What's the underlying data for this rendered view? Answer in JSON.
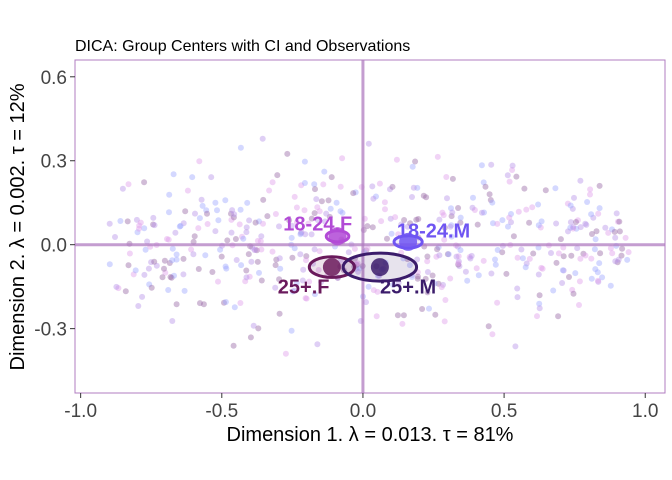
{
  "chart_data": {
    "type": "scatter",
    "title": "DICA: Group Centers with CI and Observations",
    "xlabel": "Dimension 1.   λ = 0.013.  τ = 81%",
    "ylabel": "Dimension 2.   λ = 0.002.  τ = 12%",
    "xlim": [
      -1.02,
      1.07
    ],
    "ylim": [
      -0.53,
      0.66
    ],
    "x_ticks": [
      -1.0,
      -0.5,
      0.0,
      0.5,
      1.0
    ],
    "x_tick_labels": [
      "-1.0",
      "-0.5",
      "0.0",
      "0.5",
      "1.0"
    ],
    "y_ticks": [
      -0.3,
      0.0,
      0.3,
      0.6
    ],
    "y_tick_labels": [
      "-0.3",
      "0.0",
      "0.3",
      "0.6"
    ],
    "grid": false,
    "legend": "none",
    "reference_lines": {
      "x": 0,
      "y": 0,
      "color": "#b07cc0"
    },
    "groups": [
      {
        "name": "18-24.F",
        "color": "#b24bd6",
        "center": [
          -0.09,
          0.03
        ],
        "ci_radii": [
          0.04,
          0.02
        ],
        "label_pos": [
          -0.16,
          0.075
        ]
      },
      {
        "name": "18-24.M",
        "color": "#6f55f2",
        "center": [
          0.16,
          0.01
        ],
        "ci_radii": [
          0.05,
          0.022
        ],
        "label_pos": [
          0.25,
          0.05
        ]
      },
      {
        "name": "25+.F",
        "color": "#6a1a5c",
        "center": [
          -0.11,
          -0.08
        ],
        "ci_radii": [
          0.08,
          0.037
        ],
        "label_pos": [
          -0.21,
          -0.15
        ]
      },
      {
        "name": "25+.M",
        "color": "#3b1c6b",
        "center": [
          0.06,
          -0.08
        ],
        "ci_radii": [
          0.13,
          0.05
        ],
        "label_pos": [
          0.16,
          -0.15
        ]
      }
    ],
    "observations": {
      "count": 520,
      "x_range": [
        -0.9,
        0.95
      ],
      "y_range": [
        -0.42,
        0.5
      ],
      "colors": [
        "#b895e8",
        "#e0a0ec",
        "#a0a8ff",
        "#9a6aa6"
      ]
    }
  }
}
